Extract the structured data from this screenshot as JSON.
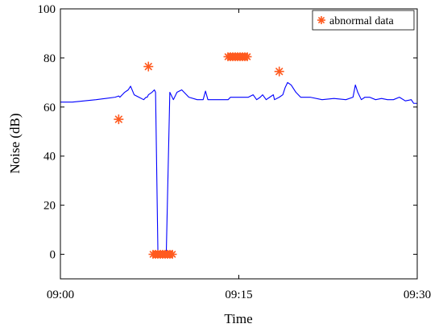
{
  "chart_data": {
    "type": "line",
    "xlabel": "Time",
    "ylabel": "Noise (dB)",
    "xlim_minutes": [
      0,
      30
    ],
    "ylim": [
      -10,
      100
    ],
    "x_ticks": [
      {
        "label": "09:00",
        "minute": 0
      },
      {
        "label": "09:15",
        "minute": 15
      },
      {
        "label": "09:30",
        "minute": 30
      }
    ],
    "y_ticks": [
      0,
      20,
      40,
      60,
      80,
      100
    ],
    "legend": {
      "placement": "top-right",
      "entries": [
        {
          "label": "abnormal data",
          "marker": "asterisk"
        }
      ]
    },
    "colors": {
      "line": "#0000ff",
      "abnormal": "#ff5a1f",
      "axis": "#000000"
    },
    "series": [
      {
        "x": [
          0,
          1,
          2,
          3,
          3.8,
          4.6,
          4.9,
          5.0,
          5.4,
          5.7,
          5.9,
          6.2,
          6.6,
          7.0,
          7.2,
          7.3,
          7.4,
          7.7,
          7.9,
          8.0,
          8.2,
          8.5,
          8.8,
          8.9,
          9.2,
          9.5,
          9.8,
          10.2,
          10.8,
          11.5,
          12.0,
          12.2,
          12.4,
          12.6,
          13.0,
          13.4,
          13.8,
          14.1,
          14.3,
          14.5,
          15.0,
          15.2,
          15.3,
          15.5,
          15.8,
          16.2,
          16.5,
          16.8,
          17.0,
          17.3,
          17.6,
          17.9,
          18.0,
          18.4,
          18.7,
          18.9,
          19.1,
          19.4,
          19.8,
          20.2,
          21.0,
          22.0,
          23.0,
          24.0,
          24.6,
          24.8,
          25.0,
          25.3,
          25.6,
          26.0,
          26.5,
          27.0,
          27.5,
          28.0,
          28.5,
          29.0,
          29.5,
          29.7,
          30.0
        ],
        "y": [
          62,
          62,
          62.5,
          63,
          63.5,
          64,
          64.5,
          64,
          66,
          67,
          68.5,
          65,
          64,
          63,
          64,
          64,
          65,
          66,
          67,
          66,
          0,
          0,
          0,
          0,
          66,
          63,
          66,
          67,
          64,
          63,
          63,
          66.5,
          63,
          63,
          63,
          63,
          63,
          63,
          64,
          64,
          64,
          64,
          64,
          64,
          64,
          65,
          63,
          64,
          65,
          63,
          64,
          65,
          63,
          64,
          65,
          68,
          70,
          69,
          66,
          64,
          64,
          63,
          63.5,
          63,
          64,
          69,
          66,
          63,
          64,
          64,
          63,
          63.5,
          63,
          63,
          64,
          62.5,
          63,
          61.5,
          61.5
        ]
      }
    ],
    "abnormal_points": [
      {
        "x": 4.9,
        "y": 55
      },
      {
        "x": 7.4,
        "y": 76.5
      },
      {
        "x": 8.6,
        "y": 0
      },
      {
        "x": 14.9,
        "y": 80.5
      },
      {
        "x": 18.4,
        "y": 74.5
      }
    ]
  }
}
